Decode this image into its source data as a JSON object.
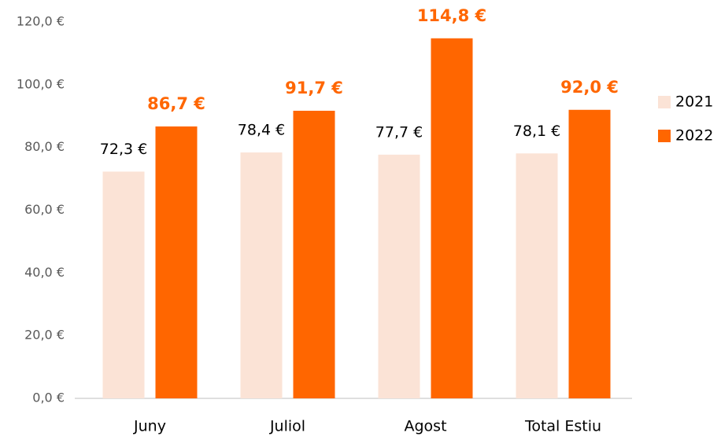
{
  "chart_data": {
    "type": "bar",
    "categories": [
      "Juny",
      "Juliol",
      "Agost",
      "Total Estiu"
    ],
    "series": [
      {
        "name": "2021",
        "color": "#fbe3d6",
        "values": [
          72.3,
          78.4,
          77.7,
          78.1
        ],
        "value_labels": [
          "72,3 €",
          "78,4 €",
          "77,7 €",
          "78,1 €"
        ]
      },
      {
        "name": "2022",
        "color": "#ff6600",
        "values": [
          86.7,
          91.7,
          114.8,
          92.0
        ],
        "value_labels": [
          "86,7 €",
          "91,7 €",
          "114,8 €",
          "92,0 €"
        ]
      }
    ],
    "ylim": [
      0,
      120
    ],
    "yticks": [
      {
        "value": 0,
        "label": "0,0 €"
      },
      {
        "value": 20,
        "label": "20,0 €"
      },
      {
        "value": 40,
        "label": "40,0 €"
      },
      {
        "value": 60,
        "label": "60,0 €"
      },
      {
        "value": 80,
        "label": "80,0 €"
      },
      {
        "value": 100,
        "label": "100,0 €"
      },
      {
        "value": 120,
        "label": "120,0 €"
      }
    ],
    "grid": false,
    "legend": "right"
  }
}
